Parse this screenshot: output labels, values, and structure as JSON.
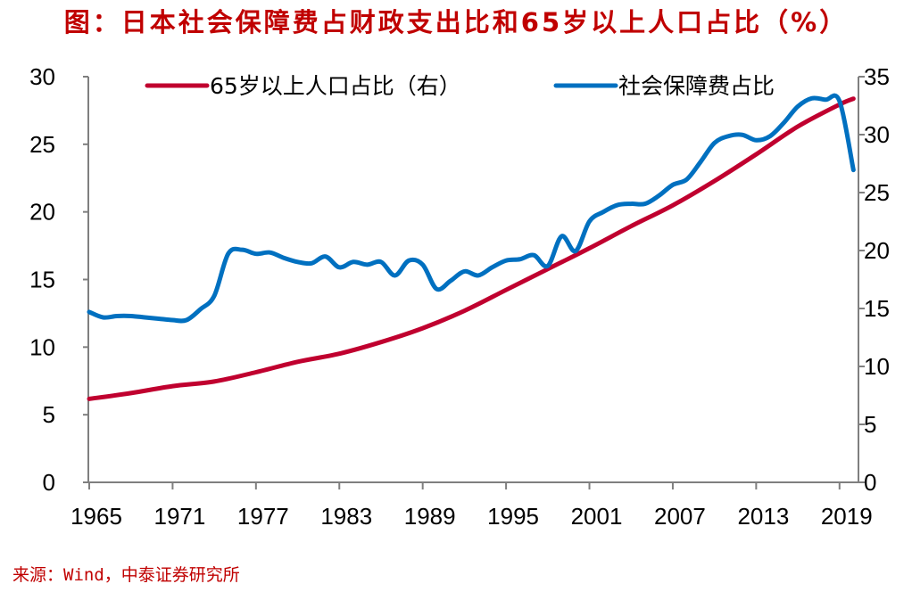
{
  "title": "图：日本社会保障费占财政支出比和65岁以上人口占比（%）",
  "source": "来源：Wind，中泰证券研究所",
  "chart_data": {
    "type": "line",
    "title": "图：日本社会保障费占财政支出比和65岁以上人口占比（%）",
    "xlabel": "",
    "ylabel_left": "",
    "ylabel_right": "",
    "xlim": [
      1965,
      2020
    ],
    "x_ticks": [
      "1965",
      "1971",
      "1977",
      "1983",
      "1989",
      "1995",
      "2001",
      "2007",
      "2013",
      "2019"
    ],
    "ylim_left": [
      0,
      30
    ],
    "y_ticks_left": [
      "0",
      "5",
      "10",
      "15",
      "20",
      "25",
      "30"
    ],
    "ylim_right": [
      0,
      35
    ],
    "y_ticks_right": [
      "0",
      "5",
      "10",
      "15",
      "20",
      "25",
      "30",
      "35"
    ],
    "grid": false,
    "legend_position": "top",
    "series": [
      {
        "name": "65岁以上人口占比（右）",
        "axis": "right",
        "color": "#c0002f",
        "x": [
          1965,
          1968,
          1971,
          1974,
          1977,
          1980,
          1983,
          1986,
          1989,
          1992,
          1995,
          1998,
          2001,
          2004,
          2007,
          2010,
          2013,
          2016,
          2019,
          2020
        ],
        "values": [
          7.2,
          7.7,
          8.3,
          8.7,
          9.5,
          10.4,
          11.1,
          12.1,
          13.3,
          14.8,
          16.6,
          18.4,
          20.2,
          22.1,
          23.9,
          26.0,
          28.3,
          30.7,
          32.6,
          33.1
        ]
      },
      {
        "name": "社会保障费占比",
        "axis": "left",
        "color": "#0070c0",
        "x": [
          1965,
          1966,
          1967,
          1968,
          1969,
          1970,
          1971,
          1972,
          1973,
          1974,
          1975,
          1976,
          1977,
          1978,
          1979,
          1980,
          1981,
          1982,
          1983,
          1984,
          1985,
          1986,
          1987,
          1988,
          1989,
          1990,
          1991,
          1992,
          1993,
          1994,
          1995,
          1996,
          1997,
          1998,
          1999,
          2000,
          2001,
          2002,
          2003,
          2004,
          2005,
          2006,
          2007,
          2008,
          2009,
          2010,
          2011,
          2012,
          2013,
          2014,
          2015,
          2016,
          2017,
          2018,
          2019,
          2020
        ],
        "values": [
          12.6,
          12.2,
          12.3,
          12.3,
          12.2,
          12.1,
          12.0,
          12.0,
          12.8,
          13.8,
          16.9,
          17.2,
          16.9,
          17.0,
          16.6,
          16.3,
          16.2,
          16.7,
          15.9,
          16.3,
          16.1,
          16.3,
          15.3,
          16.4,
          16.1,
          14.3,
          14.9,
          15.6,
          15.3,
          15.9,
          16.4,
          16.5,
          16.8,
          16.0,
          18.2,
          17.1,
          19.3,
          20.0,
          20.5,
          20.6,
          20.6,
          21.2,
          22.0,
          22.4,
          23.7,
          25.1,
          25.6,
          25.7,
          25.3,
          25.6,
          26.6,
          27.8,
          28.4,
          28.3,
          28.2,
          23.1
        ]
      }
    ]
  }
}
